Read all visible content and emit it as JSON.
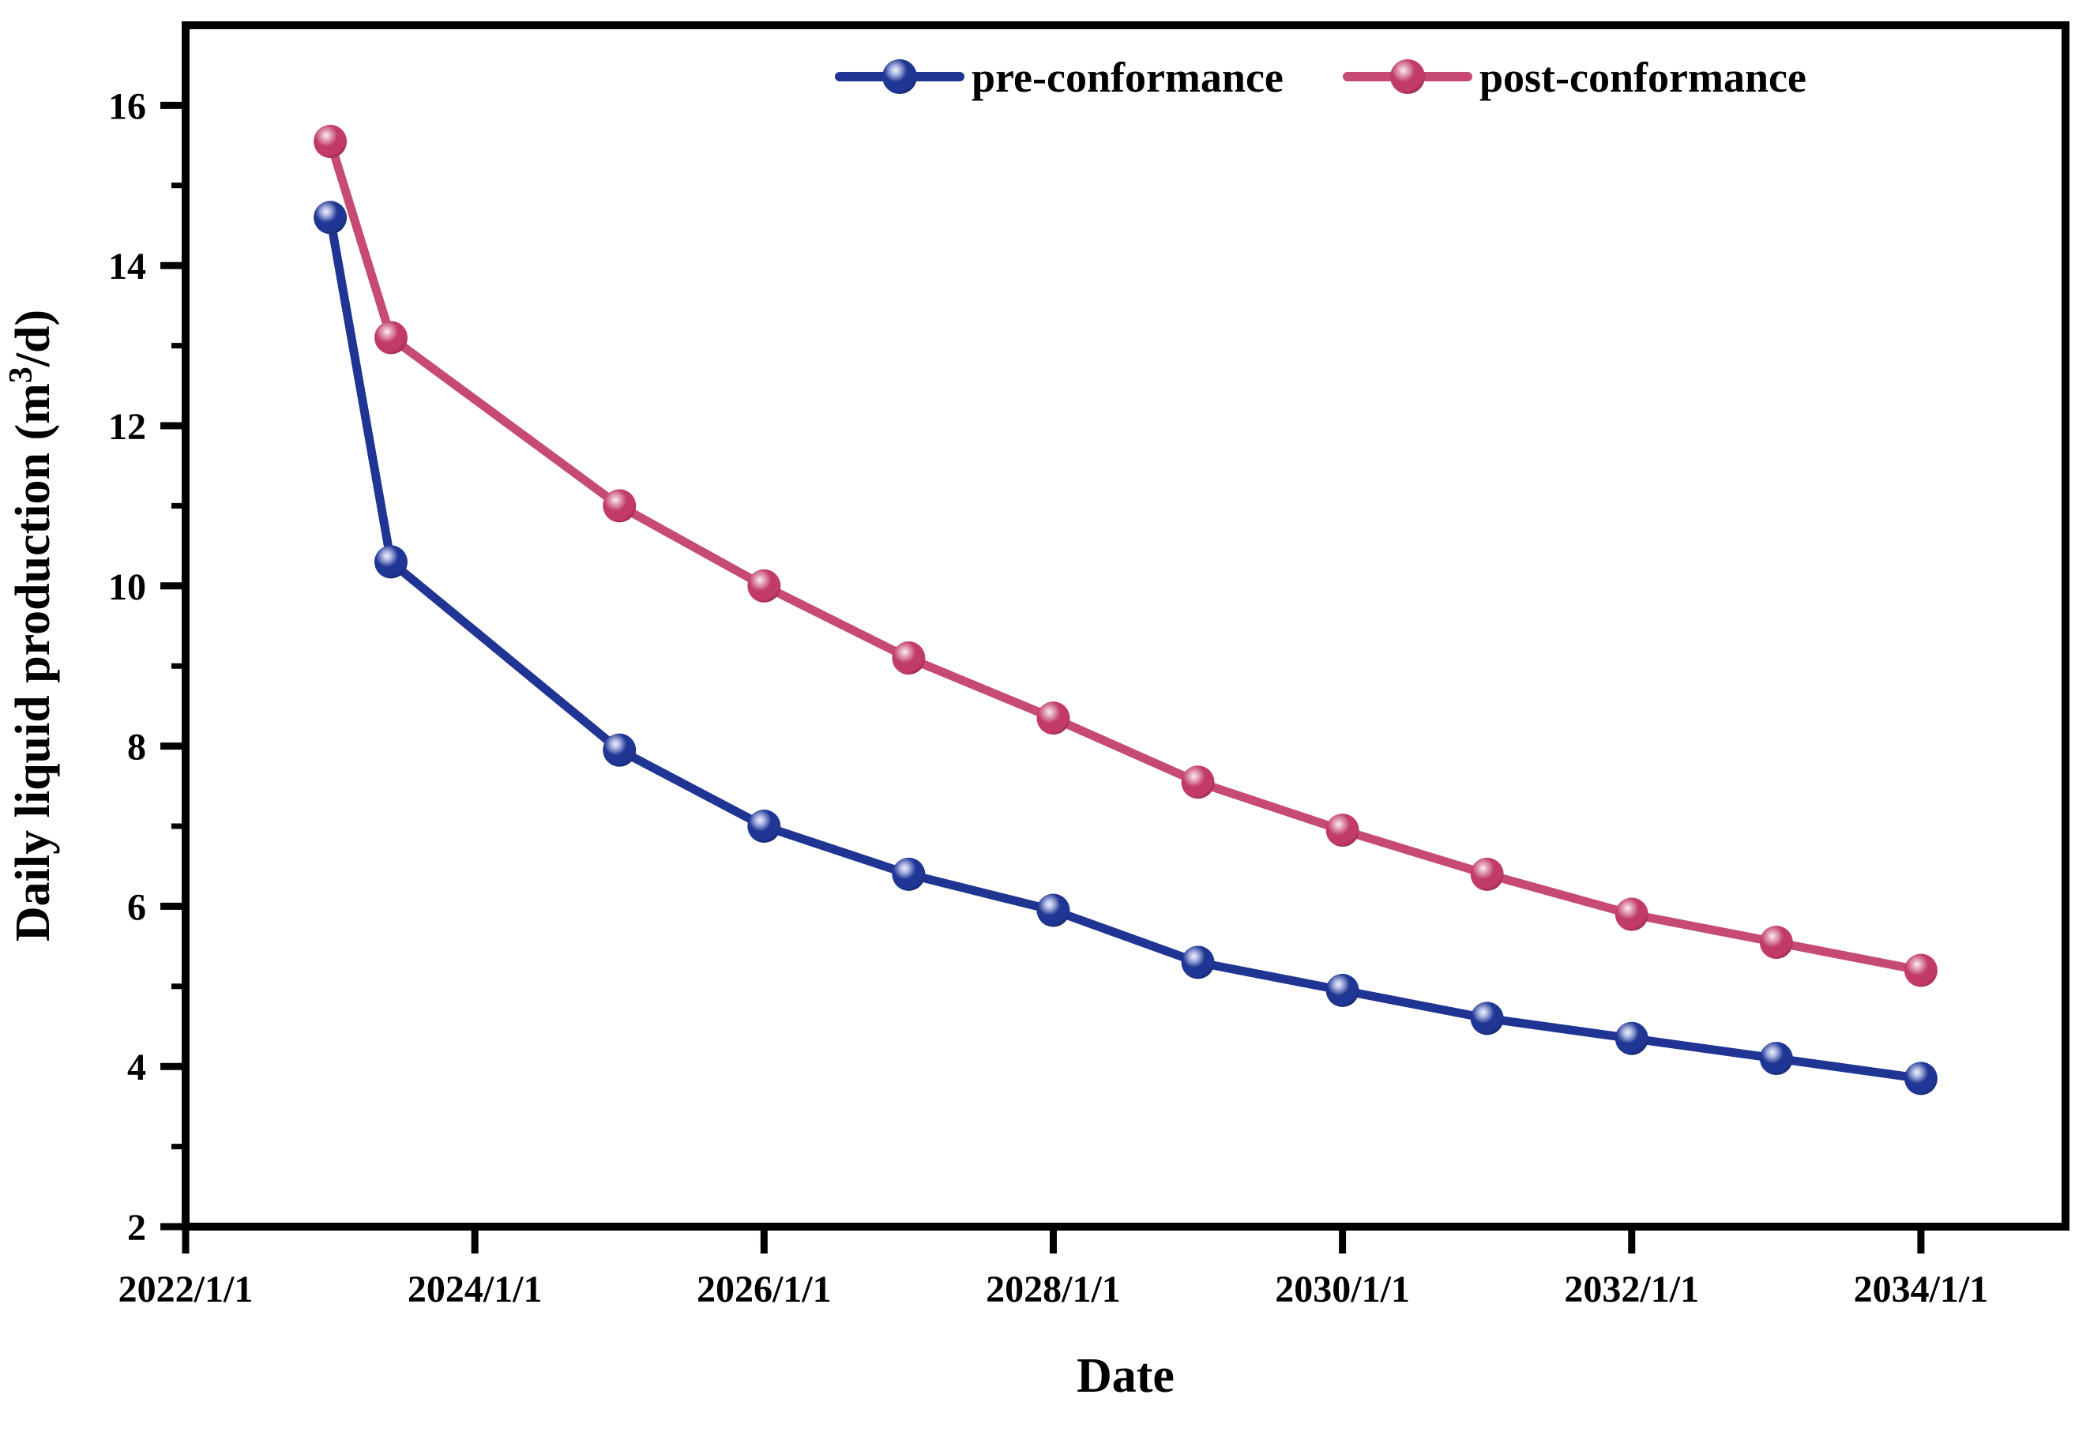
{
  "chart_data": {
    "type": "line",
    "title": "",
    "xlabel": "Date",
    "ylabel": "Daily liquid production (m³/d)",
    "ylabel_parts": {
      "prefix": "Daily liquid production (m",
      "sup": "3",
      "suffix": "/d)"
    },
    "xlim_years": [
      2022,
      2035
    ],
    "ylim": [
      2,
      17
    ],
    "x_major_ticks": [
      {
        "year": 2022,
        "label": "2022/1/1"
      },
      {
        "year": 2024,
        "label": "2024/1/1"
      },
      {
        "year": 2026,
        "label": "2026/1/1"
      },
      {
        "year": 2028,
        "label": "2028/1/1"
      },
      {
        "year": 2030,
        "label": "2030/1/1"
      },
      {
        "year": 2032,
        "label": "2032/1/1"
      },
      {
        "year": 2034,
        "label": "2034/1/1"
      }
    ],
    "y_major_ticks": [
      2,
      4,
      6,
      8,
      10,
      12,
      14,
      16
    ],
    "y_minor_ticks": [
      3,
      5,
      7,
      9,
      11,
      13,
      15
    ],
    "grid": false,
    "legend_position": "top-center-inside",
    "series": [
      {
        "name": "pre-conformance",
        "line_color": "#1f3493",
        "marker_dark": "#15245f",
        "marker_mid": "#1f3694",
        "marker_light": "#aab4e0",
        "marker_core": "#eef1fb",
        "x": [
          2023.0,
          2023.42,
          2025,
          2026,
          2027,
          2028,
          2029,
          2030,
          2031,
          2032,
          2033,
          2034
        ],
        "dates": [
          "2023/1/1",
          "2023/6/1",
          "2025/1/1",
          "2026/1/1",
          "2027/1/1",
          "2028/1/1",
          "2029/1/1",
          "2030/1/1",
          "2031/1/1",
          "2032/1/1",
          "2033/1/1",
          "2034/1/1"
        ],
        "values": [
          14.6,
          10.3,
          7.95,
          7.0,
          6.4,
          5.95,
          5.3,
          4.95,
          4.6,
          4.35,
          4.1,
          3.85
        ]
      },
      {
        "name": "post-conformance",
        "line_color": "#c64a73",
        "marker_dark": "#8f2449",
        "marker_mid": "#c23a68",
        "marker_light": "#e3a4bb",
        "marker_core": "#fbeef3",
        "x": [
          2023.0,
          2023.42,
          2025,
          2026,
          2027,
          2028,
          2029,
          2030,
          2031,
          2032,
          2033,
          2034
        ],
        "dates": [
          "2023/1/1",
          "2023/6/1",
          "2025/1/1",
          "2026/1/1",
          "2027/1/1",
          "2028/1/1",
          "2029/1/1",
          "2030/1/1",
          "2031/1/1",
          "2032/1/1",
          "2033/1/1",
          "2034/1/1"
        ],
        "values": [
          15.55,
          13.1,
          11.0,
          10.0,
          9.1,
          8.35,
          7.55,
          6.95,
          6.4,
          5.9,
          5.55,
          5.2
        ]
      }
    ]
  },
  "legend": {
    "items": [
      {
        "label": "pre-conformance"
      },
      {
        "label": "post-conformance"
      }
    ]
  }
}
